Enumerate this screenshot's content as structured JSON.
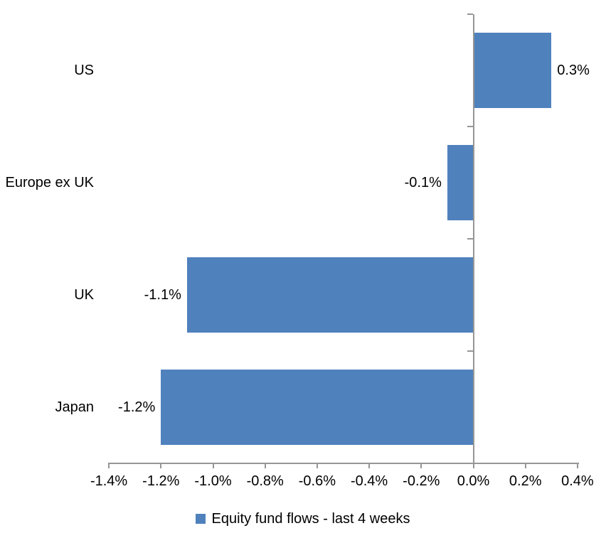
{
  "chart_data": {
    "type": "bar",
    "orientation": "horizontal",
    "title": "",
    "xlabel": "",
    "ylabel": "",
    "categories": [
      "US",
      "Europe ex UK",
      "UK",
      "Japan"
    ],
    "values": [
      0.3,
      -0.1,
      -1.1,
      -1.2
    ],
    "value_labels": [
      "0.3%",
      "-0.1%",
      "-1.1%",
      "-1.2%"
    ],
    "series_name": "Equity fund flows - last 4 weeks",
    "xlim": [
      -1.4,
      0.4
    ],
    "x_tick_values": [
      -1.4,
      -1.2,
      -1.0,
      -0.8,
      -0.6,
      -0.4,
      -0.2,
      0.0,
      0.2,
      0.4
    ],
    "x_tick_labels": [
      "-1.4%",
      "-1.2%",
      "-1.0%",
      "-0.8%",
      "-0.6%",
      "-0.4%",
      "-0.2%",
      "0.0%",
      "0.2%",
      "0.4%"
    ],
    "grid": false,
    "legend_position": "bottom",
    "bar_color": "#4F81BD",
    "axis_color": "#969696",
    "text_color": "#000000",
    "background_color": "#FFFFFF"
  },
  "legend": {
    "label": "Equity fund flows - last 4 weeks",
    "swatch_color": "#4F81BD"
  }
}
